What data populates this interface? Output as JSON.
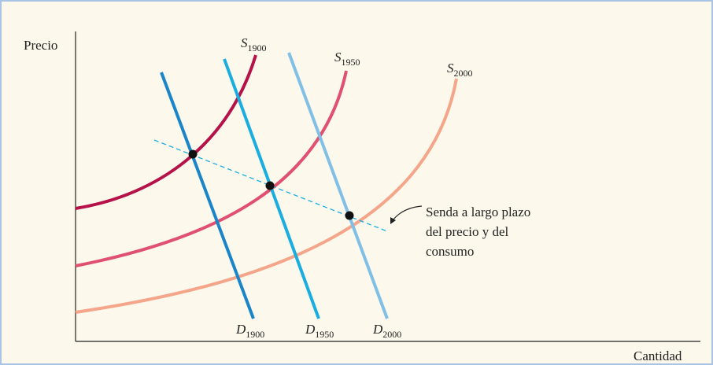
{
  "axes": {
    "y_label": "Precio",
    "x_label": "Cantidad"
  },
  "supply_curves": [
    {
      "letter": "S",
      "subscript": "1900"
    },
    {
      "letter": "S",
      "subscript": "1950"
    },
    {
      "letter": "S",
      "subscript": "2000"
    }
  ],
  "demand_curves": [
    {
      "letter": "D",
      "subscript": "1900"
    },
    {
      "letter": "D",
      "subscript": "1950"
    },
    {
      "letter": "D",
      "subscript": "2000"
    }
  ],
  "annotation": {
    "lines": [
      "Senda a largo plazo",
      "del precio y del",
      "consumo"
    ]
  }
}
